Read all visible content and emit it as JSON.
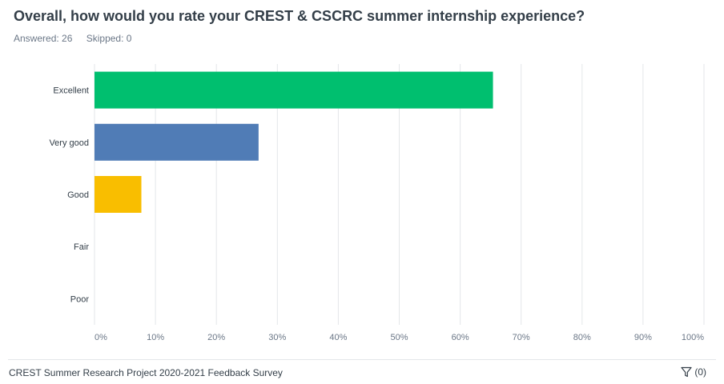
{
  "question": {
    "title": "Overall, how would you rate your CREST & CSCRC summer internship experience?",
    "answered_label": "Answered: 26",
    "skipped_label": "Skipped: 0"
  },
  "colors": {
    "excellent": "#00bf6f",
    "very_good": "#507cb6",
    "good": "#f9be00",
    "grid": "#e3e6e9"
  },
  "chart_data": {
    "type": "bar",
    "orientation": "horizontal",
    "categories": [
      "Excellent",
      "Very good",
      "Good",
      "Fair",
      "Poor"
    ],
    "values": [
      65.38,
      26.92,
      7.69,
      0,
      0
    ],
    "xlim": [
      0,
      100
    ],
    "x_ticks": [
      "0%",
      "10%",
      "20%",
      "30%",
      "40%",
      "50%",
      "60%",
      "70%",
      "80%",
      "90%",
      "100%"
    ],
    "grid": true
  },
  "footer": {
    "survey_title": "CREST Summer Research Project 2020-2021 Feedback Survey",
    "filter_icon": "filter-icon",
    "filter_count": "(0)"
  }
}
